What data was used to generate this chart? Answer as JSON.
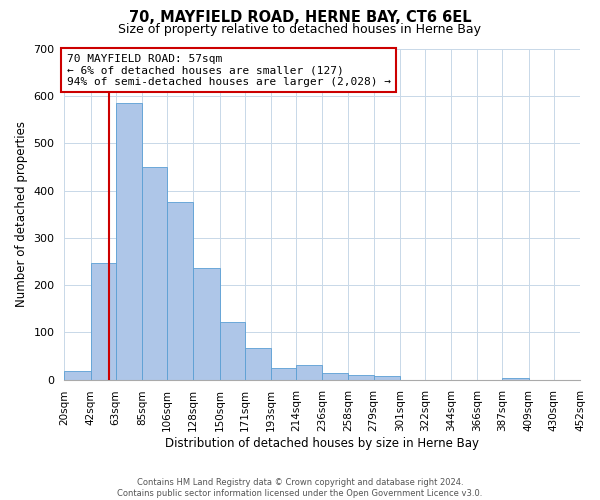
{
  "title": "70, MAYFIELD ROAD, HERNE BAY, CT6 6EL",
  "subtitle": "Size of property relative to detached houses in Herne Bay",
  "xlabel": "Distribution of detached houses by size in Herne Bay",
  "ylabel": "Number of detached properties",
  "bin_edges": [
    20,
    42,
    63,
    85,
    106,
    128,
    150,
    171,
    193,
    214,
    236,
    258,
    279,
    301,
    322,
    344,
    366,
    387,
    409,
    430,
    452
  ],
  "bar_heights": [
    18,
    247,
    585,
    450,
    375,
    237,
    122,
    67,
    25,
    30,
    13,
    10,
    8,
    0,
    0,
    0,
    0,
    3,
    0,
    0
  ],
  "bar_color": "#aec6e8",
  "bar_edge_color": "#5a9fd4",
  "property_size": 57,
  "vline_color": "#cc0000",
  "annotation_line1": "70 MAYFIELD ROAD: 57sqm",
  "annotation_line2": "← 6% of detached houses are smaller (127)",
  "annotation_line3": "94% of semi-detached houses are larger (2,028) →",
  "annotation_box_color": "#ffffff",
  "annotation_border_color": "#cc0000",
  "ylim": [
    0,
    700
  ],
  "yticks": [
    0,
    100,
    200,
    300,
    400,
    500,
    600,
    700
  ],
  "footer_line1": "Contains HM Land Registry data © Crown copyright and database right 2024.",
  "footer_line2": "Contains public sector information licensed under the Open Government Licence v3.0.",
  "background_color": "#ffffff",
  "grid_color": "#c8d8e8",
  "title_fontsize": 10.5,
  "subtitle_fontsize": 9
}
